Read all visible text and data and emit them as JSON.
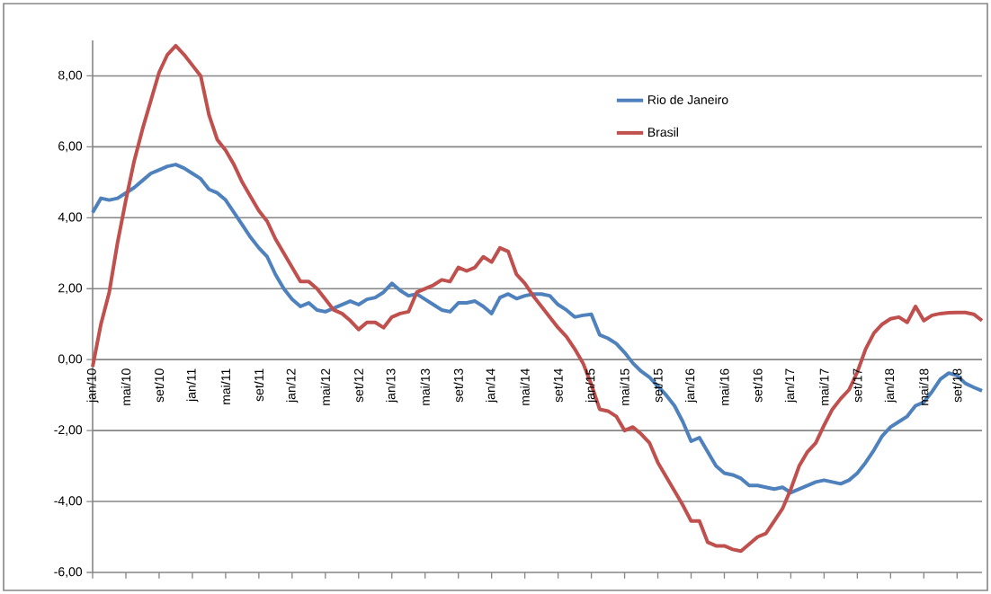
{
  "chart_data": {
    "type": "line",
    "categories": [
      "jan/10",
      null,
      null,
      null,
      "mai/10",
      null,
      null,
      null,
      "set/10",
      null,
      null,
      null,
      "jan/11",
      null,
      null,
      null,
      "mai/11",
      null,
      null,
      null,
      "set/11",
      null,
      null,
      null,
      "jan/12",
      null,
      null,
      null,
      "mai/12",
      null,
      null,
      null,
      "set/12",
      null,
      null,
      null,
      "jan/13",
      null,
      null,
      null,
      "mai/13",
      null,
      null,
      null,
      "set/13",
      null,
      null,
      null,
      "jan/14",
      null,
      null,
      null,
      "mai/14",
      null,
      null,
      null,
      "set/14",
      null,
      null,
      null,
      "jan/15",
      null,
      null,
      null,
      "mai/15",
      null,
      null,
      null,
      "set/15",
      null,
      null,
      null,
      "jan/16",
      null,
      null,
      null,
      "mai/16",
      null,
      null,
      null,
      "set/16",
      null,
      null,
      null,
      "jan/17",
      null,
      null,
      null,
      "mai/17",
      null,
      null,
      null,
      "set/17",
      null,
      null,
      null,
      "jan/18",
      null,
      null,
      null,
      "mai/18",
      null,
      null,
      null,
      "set/18",
      null,
      null,
      null
    ],
    "series": [
      {
        "name": "Rio de Janeiro",
        "color": "#4f81bd",
        "values": [
          4.15,
          4.55,
          4.5,
          4.55,
          4.7,
          4.85,
          5.05,
          5.25,
          5.35,
          5.45,
          5.5,
          5.4,
          5.25,
          5.1,
          4.8,
          4.7,
          4.5,
          4.15,
          3.8,
          3.45,
          3.15,
          2.9,
          2.4,
          2.0,
          1.7,
          1.5,
          1.6,
          1.4,
          1.35,
          1.45,
          1.55,
          1.65,
          1.55,
          1.7,
          1.75,
          1.9,
          2.15,
          1.95,
          1.8,
          1.85,
          1.7,
          1.55,
          1.4,
          1.35,
          1.6,
          1.6,
          1.65,
          1.5,
          1.3,
          1.75,
          1.85,
          1.72,
          1.8,
          1.85,
          1.85,
          1.8,
          1.55,
          1.4,
          1.2,
          1.25,
          1.28,
          0.7,
          0.6,
          0.45,
          0.2,
          -0.1,
          -0.33,
          -0.5,
          -0.75,
          -1.0,
          -1.3,
          -1.75,
          -2.3,
          -2.2,
          -2.6,
          -3.0,
          -3.2,
          -3.25,
          -3.35,
          -3.55,
          -3.55,
          -3.6,
          -3.65,
          -3.6,
          -3.75,
          -3.65,
          -3.55,
          -3.45,
          -3.4,
          -3.45,
          -3.5,
          -3.4,
          -3.2,
          -2.9,
          -2.55,
          -2.15,
          -1.9,
          -1.75,
          -1.6,
          -1.3,
          -1.2,
          -0.9,
          -0.55,
          -0.38,
          -0.45,
          -0.67,
          -0.78,
          -0.88
        ]
      },
      {
        "name": "Brasil",
        "color": "#c0504d",
        "values": [
          -0.2,
          1.0,
          1.9,
          3.3,
          4.5,
          5.6,
          6.5,
          7.3,
          8.1,
          8.6,
          8.85,
          8.6,
          8.3,
          8.0,
          6.9,
          6.2,
          5.9,
          5.5,
          5.0,
          4.6,
          4.2,
          3.9,
          3.4,
          3.0,
          2.6,
          2.2,
          2.2,
          2.0,
          1.7,
          1.4,
          1.3,
          1.1,
          0.85,
          1.05,
          1.05,
          0.9,
          1.2,
          1.3,
          1.35,
          1.9,
          2.0,
          2.1,
          2.25,
          2.2,
          2.6,
          2.5,
          2.6,
          2.9,
          2.75,
          3.15,
          3.05,
          2.4,
          2.15,
          1.8,
          1.5,
          1.2,
          0.9,
          0.65,
          0.3,
          -0.1,
          -0.7,
          -1.4,
          -1.45,
          -1.6,
          -2.0,
          -1.9,
          -2.1,
          -2.35,
          -2.9,
          -3.3,
          -3.7,
          -4.1,
          -4.55,
          -4.55,
          -5.15,
          -5.25,
          -5.25,
          -5.35,
          -5.4,
          -5.2,
          -5.0,
          -4.9,
          -4.55,
          -4.2,
          -3.65,
          -3.0,
          -2.6,
          -2.35,
          -1.85,
          -1.4,
          -1.1,
          -0.85,
          -0.35,
          0.3,
          0.75,
          1.0,
          1.15,
          1.2,
          1.05,
          1.5,
          1.1,
          1.25,
          1.3,
          1.32,
          1.33,
          1.33,
          1.28,
          1.1
        ]
      }
    ],
    "ylim": [
      -6,
      9
    ],
    "yticks": [
      {
        "value": -6,
        "label": "-6,00"
      },
      {
        "value": -4,
        "label": "-4,00"
      },
      {
        "value": -2,
        "label": "-2,00"
      },
      {
        "value": 0,
        "label": "0,00"
      },
      {
        "value": 2,
        "label": "2,00"
      },
      {
        "value": 4,
        "label": "4,00"
      },
      {
        "value": 6,
        "label": "6,00"
      },
      {
        "value": 8,
        "label": "8,00"
      }
    ],
    "grid": "y",
    "legend": "top right"
  }
}
